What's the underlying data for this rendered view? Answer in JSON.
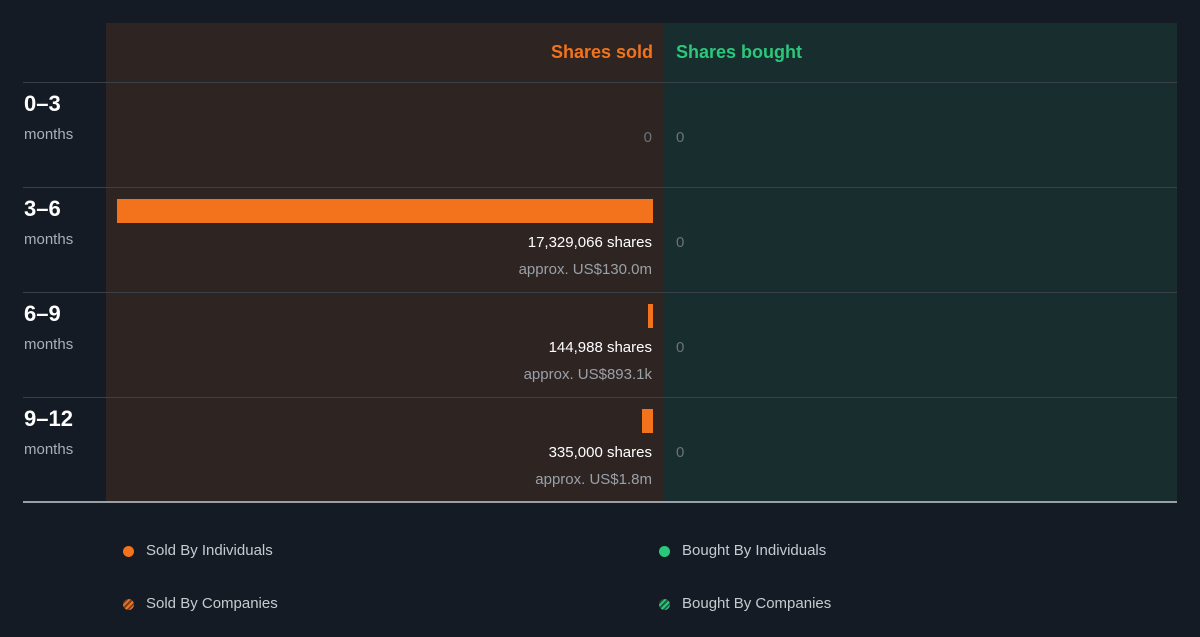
{
  "colors": {
    "sold": "#f3731c",
    "bought": "#2bc77a"
  },
  "chart_data": {
    "type": "bar",
    "headers": {
      "sold": "Shares sold",
      "bought": "Shares bought"
    },
    "categories": [
      {
        "period": "0–3",
        "unit": "months"
      },
      {
        "period": "3–6",
        "unit": "months"
      },
      {
        "period": "6–9",
        "unit": "months"
      },
      {
        "period": "9–12",
        "unit": "months"
      }
    ],
    "series": [
      {
        "name": "Shares sold",
        "values": [
          0,
          17329066,
          144988,
          335000
        ],
        "labels": [
          "0",
          "17,329,066 shares",
          "144,988 shares",
          "335,000 shares"
        ],
        "approx": [
          "",
          "approx. US$130.0m",
          "approx. US$893.1k",
          "approx. US$1.8m"
        ]
      },
      {
        "name": "Shares bought",
        "values": [
          0,
          0,
          0,
          0
        ],
        "labels": [
          "0",
          "0",
          "0",
          "0"
        ]
      }
    ],
    "legend": {
      "sold_individuals": "Sold By Individuals",
      "sold_companies": "Sold By Companies",
      "bought_individuals": "Bought By Individuals",
      "bought_companies": "Bought By Companies"
    }
  }
}
